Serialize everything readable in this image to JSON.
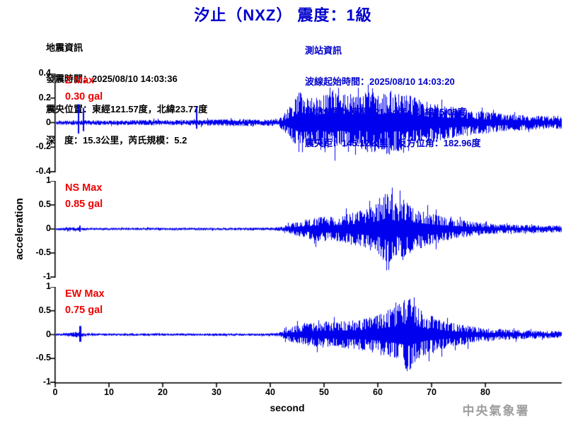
{
  "title": "汐止（NXZ） 震度：1級",
  "quake_info": {
    "heading": "地震資訊",
    "lines": [
      "發震時間：2025/08/10 14:03:36",
      "震央位置：東經121.57度，北緯23.77度",
      "深　度：15.3公里，芮氏規模：5.2"
    ]
  },
  "station_info": {
    "heading": "測站資訊",
    "lines": [
      "波線起始時間：2025/08/10 14:03:20",
      "測站位置：東經121.64度，北緯25.08度",
      "震央距：145.12公里，反方位角：182.96度"
    ]
  },
  "watermark": "中央氣象署",
  "colors": {
    "blue_text": "#0000CC",
    "wave_blue": "#0000EE",
    "label_red": "#EE0000",
    "axis_black": "#000000",
    "watermark_gray": "#9E9E9E"
  },
  "chart_data": {
    "type": "line",
    "title": "汐止（NXZ） 震度：1級",
    "xlabel": "second",
    "ylabel": "acceleration",
    "x_ticks": [
      0,
      10,
      20,
      30,
      40,
      50,
      60,
      70,
      80
    ],
    "x_range": [
      0,
      94
    ],
    "grid": false,
    "panels": [
      {
        "id": "Z",
        "label": "Z Max",
        "value": "0.30 gal",
        "max_gal": 0.3,
        "ylim": [
          -0.4,
          0.4
        ],
        "yticks": [
          "0.4",
          "0.2",
          "0",
          "-0.2",
          "-0.4"
        ],
        "clamp_gal": 0.31,
        "envelope": [
          [
            0,
            0.018
          ],
          [
            4,
            0.018
          ],
          [
            6,
            0.02
          ],
          [
            10,
            0.018
          ],
          [
            14,
            0.02
          ],
          [
            18,
            0.022
          ],
          [
            22,
            0.02
          ],
          [
            26,
            0.022
          ],
          [
            30,
            0.025
          ],
          [
            33,
            0.03
          ],
          [
            36,
            0.028
          ],
          [
            38,
            0.025
          ],
          [
            40,
            0.028
          ],
          [
            41.5,
            0.035
          ],
          [
            42.5,
            0.07
          ],
          [
            43.5,
            0.13
          ],
          [
            44.5,
            0.19
          ],
          [
            45.5,
            0.26
          ],
          [
            47,
            0.24
          ],
          [
            48.5,
            0.2
          ],
          [
            50,
            0.24
          ],
          [
            51.5,
            0.27
          ],
          [
            53,
            0.22
          ],
          [
            54.5,
            0.25
          ],
          [
            56,
            0.21
          ],
          [
            57.5,
            0.24
          ],
          [
            59,
            0.26
          ],
          [
            60.5,
            0.22
          ],
          [
            62,
            0.27
          ],
          [
            63.5,
            0.23
          ],
          [
            65,
            0.26
          ],
          [
            66.5,
            0.21
          ],
          [
            68,
            0.19
          ],
          [
            70,
            0.16
          ],
          [
            72,
            0.14
          ],
          [
            74,
            0.13
          ],
          [
            76,
            0.11
          ],
          [
            78,
            0.1
          ],
          [
            80,
            0.09
          ],
          [
            83,
            0.075
          ],
          [
            86,
            0.065
          ],
          [
            90,
            0.055
          ],
          [
            94,
            0.05
          ]
        ],
        "spikes": [
          [
            4.3,
            0.15,
            -0.09
          ],
          [
            5.2,
            0.12,
            -0.07
          ],
          [
            26.2,
            0.13,
            -0.05
          ]
        ]
      },
      {
        "id": "NS",
        "label": "NS Max",
        "value": "0.85 gal",
        "max_gal": 0.85,
        "ylim": [
          -1,
          1
        ],
        "yticks": [
          "1",
          "0.5",
          "0",
          "-0.5",
          "-1"
        ],
        "clamp_gal": 0.86,
        "envelope": [
          [
            0,
            0.025
          ],
          [
            1.5,
            0.03
          ],
          [
            2.5,
            0.05
          ],
          [
            4,
            0.035
          ],
          [
            5,
            0.028
          ],
          [
            8,
            0.025
          ],
          [
            12,
            0.026
          ],
          [
            16,
            0.025
          ],
          [
            20,
            0.026
          ],
          [
            24,
            0.025
          ],
          [
            28,
            0.026
          ],
          [
            32,
            0.025
          ],
          [
            36,
            0.026
          ],
          [
            40,
            0.028
          ],
          [
            41.5,
            0.04
          ],
          [
            42.5,
            0.06
          ],
          [
            44,
            0.12
          ],
          [
            45.5,
            0.17
          ],
          [
            47,
            0.21
          ],
          [
            48.5,
            0.24
          ],
          [
            50,
            0.27
          ],
          [
            51.5,
            0.25
          ],
          [
            53,
            0.28
          ],
          [
            54.5,
            0.32
          ],
          [
            56,
            0.36
          ],
          [
            57.5,
            0.42
          ],
          [
            59,
            0.48
          ],
          [
            60,
            0.55
          ],
          [
            61,
            0.68
          ],
          [
            62,
            0.9
          ],
          [
            62.8,
            0.62
          ],
          [
            63.6,
            0.52
          ],
          [
            64.5,
            0.72
          ],
          [
            65.3,
            0.58
          ],
          [
            66,
            0.5
          ],
          [
            67,
            0.44
          ],
          [
            68,
            0.4
          ],
          [
            69,
            0.36
          ],
          [
            70,
            0.32
          ],
          [
            71.5,
            0.27
          ],
          [
            73,
            0.23
          ],
          [
            75,
            0.19
          ],
          [
            77,
            0.16
          ],
          [
            79,
            0.13
          ],
          [
            81,
            0.11
          ],
          [
            84,
            0.095
          ],
          [
            88,
            0.08
          ],
          [
            94,
            0.07
          ]
        ],
        "spikes": [
          [
            4.5,
            0.07,
            -0.06
          ]
        ]
      },
      {
        "id": "EW",
        "label": "EW Max",
        "value": "0.75 gal",
        "max_gal": 0.75,
        "ylim": [
          -1,
          1
        ],
        "yticks": [
          "1",
          "0.5",
          "0",
          "-0.5",
          "-1"
        ],
        "clamp_gal": 0.78,
        "envelope": [
          [
            0,
            0.025
          ],
          [
            2,
            0.03
          ],
          [
            3.5,
            0.05
          ],
          [
            4.5,
            0.07
          ],
          [
            5.5,
            0.035
          ],
          [
            8,
            0.026
          ],
          [
            12,
            0.025
          ],
          [
            16,
            0.026
          ],
          [
            20,
            0.025
          ],
          [
            24,
            0.026
          ],
          [
            28,
            0.025
          ],
          [
            32,
            0.026
          ],
          [
            36,
            0.025
          ],
          [
            40,
            0.028
          ],
          [
            41.5,
            0.04
          ],
          [
            42.5,
            0.09
          ],
          [
            44,
            0.16
          ],
          [
            45.5,
            0.21
          ],
          [
            47,
            0.24
          ],
          [
            48.5,
            0.26
          ],
          [
            50,
            0.28
          ],
          [
            52,
            0.26
          ],
          [
            54,
            0.29
          ],
          [
            56,
            0.31
          ],
          [
            58,
            0.35
          ],
          [
            60,
            0.42
          ],
          [
            61.5,
            0.5
          ],
          [
            63,
            0.58
          ],
          [
            64.5,
            0.68
          ],
          [
            65.5,
            0.82
          ],
          [
            66.5,
            0.66
          ],
          [
            67.5,
            0.58
          ],
          [
            68.5,
            0.46
          ],
          [
            69.5,
            0.38
          ],
          [
            70.5,
            0.42
          ],
          [
            71.5,
            0.33
          ],
          [
            73,
            0.27
          ],
          [
            75,
            0.22
          ],
          [
            77,
            0.18
          ],
          [
            79,
            0.15
          ],
          [
            81,
            0.13
          ],
          [
            84,
            0.11
          ],
          [
            88,
            0.09
          ],
          [
            94,
            0.075
          ]
        ],
        "spikes": [
          [
            4.6,
            0.18,
            -0.15
          ]
        ]
      }
    ]
  }
}
